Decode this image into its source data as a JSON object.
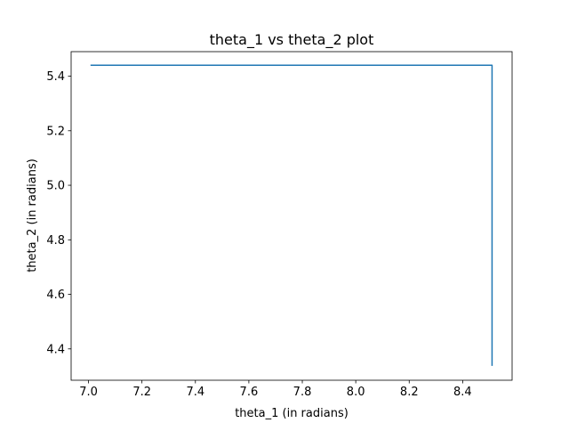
{
  "chart_data": {
    "type": "line",
    "title": "theta_1 vs theta_2 plot",
    "xlabel": "theta_1 (in radians)",
    "ylabel": "theta_2 (in radians)",
    "xlim": [
      6.935,
      8.585
    ],
    "ylim": [
      4.285,
      5.49
    ],
    "xticks": [
      7.0,
      7.2,
      7.4,
      7.6,
      7.8,
      8.0,
      8.2,
      8.4
    ],
    "xtick_labels": [
      "7.0",
      "7.2",
      "7.4",
      "7.6",
      "7.8",
      "8.0",
      "8.2",
      "8.4"
    ],
    "yticks": [
      4.4,
      4.6,
      4.8,
      5.0,
      5.2,
      5.4
    ],
    "ytick_labels": [
      "4.4",
      "4.6",
      "4.8",
      "5.0",
      "5.2",
      "5.4"
    ],
    "grid": false,
    "legend": "none",
    "series": [
      {
        "color": "#1f77b4",
        "x": [
          7.01,
          8.51,
          8.51
        ],
        "y": [
          5.44,
          5.44,
          4.34
        ]
      }
    ]
  }
}
